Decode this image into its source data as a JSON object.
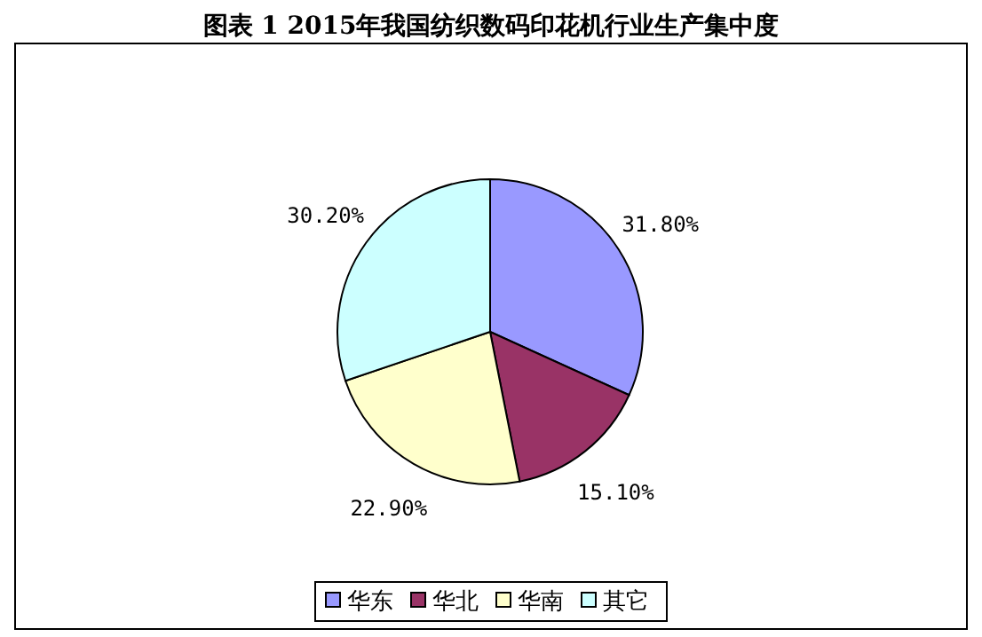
{
  "chart_data": {
    "type": "pie",
    "title": "图表 1 2015年我国纺织数码印花机行业生产集中度",
    "categories": [
      "华东",
      "华北",
      "华南",
      "其它"
    ],
    "values": [
      31.8,
      15.1,
      22.9,
      30.2
    ],
    "value_labels": [
      "31.80%",
      "15.10%",
      "22.90%",
      "30.20%"
    ],
    "colors": [
      "#9999ff",
      "#993366",
      "#ffffcc",
      "#ccffff"
    ],
    "legend": "bottom"
  }
}
